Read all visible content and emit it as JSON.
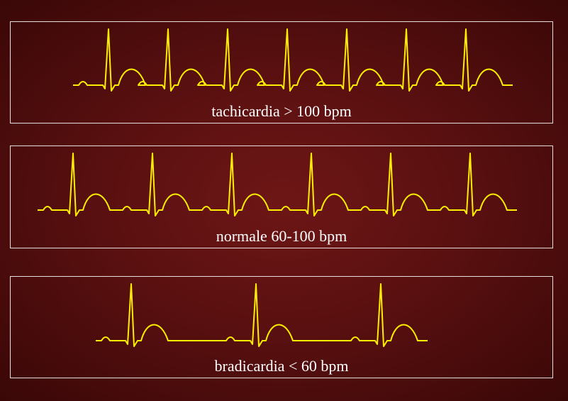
{
  "panels": [
    {
      "label": "tachicardia > 100 bpm",
      "beats": 7
    },
    {
      "label": "normale 60-100 bpm",
      "beats": 6
    },
    {
      "label": "bradicardia < 60 bpm",
      "beats": 3
    }
  ],
  "colors": {
    "trace": "#ffee00",
    "border": "#e8dede",
    "text": "#ffffff"
  }
}
